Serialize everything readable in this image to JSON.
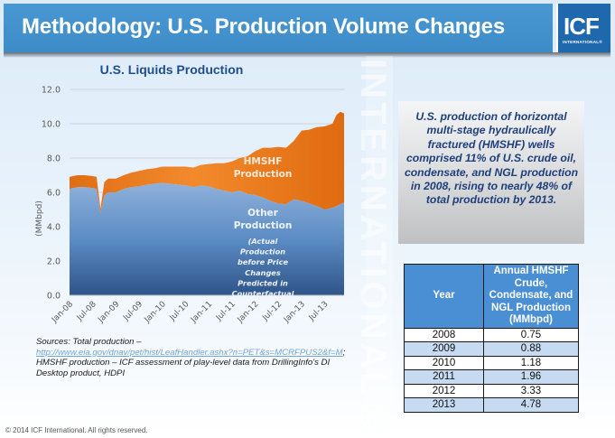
{
  "header": {
    "title": "Methodology: U.S. Production Volume Changes",
    "logo_text": "ICF",
    "logo_subtext": "INTERNATIONAL®"
  },
  "watermark": "INTERNATIONAL®",
  "colors": {
    "header_blue": "#3d8cc8",
    "logo_blue": "#1f68ad",
    "hmshf_orange": "#ee7d22",
    "other_blue": "#5b8cc4",
    "title_blue": "#1f4e8c",
    "table_header_blue": "#4a8fd4",
    "table_alt_row": "#c6dbf1"
  },
  "chart_data": {
    "type": "area",
    "stacked": true,
    "title": "U.S. Liquids Production",
    "xlabel": "",
    "ylabel": "(MMbpd)",
    "ylim": [
      0,
      12
    ],
    "yticks": [
      "0.0",
      "2.0",
      "4.0",
      "6.0",
      "8.0",
      "10.0",
      "12.0"
    ],
    "xtick_labels": [
      "Jan-08",
      "Jul-08",
      "Jan-09",
      "Jul-09",
      "Jan-10",
      "Jul-10",
      "Jan-11",
      "Jul-11",
      "Jan-12",
      "Jul-12",
      "Jan-13",
      "Jul-13"
    ],
    "grid": "horizontal",
    "x": [
      "Jan-08",
      "Mar-08",
      "May-08",
      "Jul-08",
      "Aug-08",
      "Sep-08",
      "Oct-08",
      "Nov-08",
      "Jan-09",
      "Mar-09",
      "May-09",
      "Jul-09",
      "Sep-09",
      "Nov-09",
      "Jan-10",
      "Mar-10",
      "May-10",
      "Jul-10",
      "Sep-10",
      "Nov-10",
      "Jan-11",
      "Mar-11",
      "May-11",
      "Jul-11",
      "Sep-11",
      "Nov-11",
      "Jan-12",
      "Mar-12",
      "May-12",
      "Jul-12",
      "Sep-12",
      "Nov-12",
      "Jan-13",
      "Mar-13",
      "May-13",
      "Jul-13",
      "Sep-13",
      "Oct-13",
      "Nov-13",
      "Dec-13"
    ],
    "series": [
      {
        "name": "Other Production",
        "label": "Other Production",
        "sublabel": "(Actual Production before Price Changes Predicted in Counterfactual",
        "values": [
          6.2,
          6.3,
          6.3,
          6.25,
          6.2,
          4.8,
          5.8,
          6.0,
          6.0,
          6.2,
          6.3,
          6.35,
          6.45,
          6.5,
          6.55,
          6.5,
          6.45,
          6.4,
          6.3,
          6.4,
          6.35,
          6.2,
          6.1,
          6.0,
          6.1,
          5.9,
          5.85,
          5.7,
          5.5,
          5.35,
          5.3,
          5.6,
          5.5,
          5.35,
          5.2,
          5.0,
          5.1,
          5.2,
          5.3,
          5.4
        ]
      },
      {
        "name": "HMSHF Production",
        "label": "HMSHF Production",
        "values": [
          0.7,
          0.7,
          0.7,
          0.7,
          0.7,
          0.25,
          0.8,
          0.8,
          0.8,
          0.8,
          0.85,
          0.9,
          0.9,
          0.9,
          0.95,
          1.0,
          1.05,
          1.1,
          1.15,
          1.2,
          1.3,
          1.5,
          1.6,
          1.8,
          1.9,
          2.2,
          2.55,
          2.9,
          3.1,
          3.3,
          3.3,
          3.4,
          4.1,
          4.3,
          4.6,
          4.85,
          4.9,
          5.3,
          5.4,
          5.2
        ]
      }
    ]
  },
  "sources": {
    "prefix": "Sources: Total production –",
    "link": "http://www.eia.gov/dnav/pet/hist/LeafHandler.ashx?n=PET&s=MCRFPUS2&f=M",
    "suffix": "; HMSHF production – ICF assessment of play-level data from DrillingInfo's  DI Desktop product, HDPI"
  },
  "callout": "U.S. production of horizontal multi-stage hydraulically fractured (HMSHF) wells comprised 11% of U.S. crude oil, condensate, and NGL production in 2008, rising to nearly 48% of total production by 2013.",
  "table": {
    "headers": [
      "Year",
      "Annual HMSHF Crude, Condensate, and NGL Production (MMbpd)"
    ],
    "rows": [
      [
        "2008",
        "0.75"
      ],
      [
        "2009",
        "0.88"
      ],
      [
        "2010",
        "1.18"
      ],
      [
        "2011",
        "1.96"
      ],
      [
        "2012",
        "3.33"
      ],
      [
        "2013",
        "4.78"
      ]
    ]
  },
  "footer": "© 2014 ICF International. All rights reserved."
}
